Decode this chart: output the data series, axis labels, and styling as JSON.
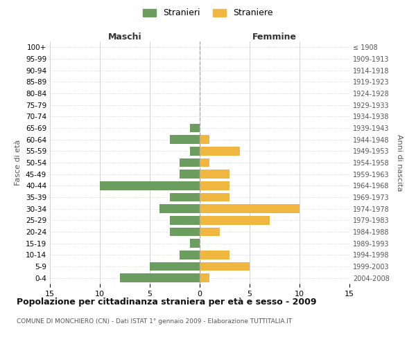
{
  "age_groups": [
    "100+",
    "95-99",
    "90-94",
    "85-89",
    "80-84",
    "75-79",
    "70-74",
    "65-69",
    "60-64",
    "55-59",
    "50-54",
    "45-49",
    "40-44",
    "35-39",
    "30-34",
    "25-29",
    "20-24",
    "15-19",
    "10-14",
    "5-9",
    "0-4"
  ],
  "birth_years": [
    "≤ 1908",
    "1909-1913",
    "1914-1918",
    "1919-1923",
    "1924-1928",
    "1929-1933",
    "1934-1938",
    "1939-1943",
    "1944-1948",
    "1949-1953",
    "1954-1958",
    "1959-1963",
    "1964-1968",
    "1969-1973",
    "1974-1978",
    "1979-1983",
    "1984-1988",
    "1989-1993",
    "1994-1998",
    "1999-2003",
    "2004-2008"
  ],
  "maschi": [
    0,
    0,
    0,
    0,
    0,
    0,
    0,
    1,
    3,
    1,
    2,
    2,
    10,
    3,
    4,
    3,
    3,
    1,
    2,
    5,
    8
  ],
  "femmine": [
    0,
    0,
    0,
    0,
    0,
    0,
    0,
    0,
    1,
    4,
    1,
    3,
    3,
    3,
    10,
    7,
    2,
    0,
    3,
    5,
    1
  ],
  "color_maschi": "#6b9e5e",
  "color_femmine": "#f0b740",
  "title": "Popolazione per cittadinanza straniera per età e sesso - 2009",
  "subtitle": "COMUNE DI MONCHIERO (CN) - Dati ISTAT 1° gennaio 2009 - Elaborazione TUTTITALIA.IT",
  "xlabel_left": "Maschi",
  "xlabel_right": "Femmine",
  "ylabel_left": "Fasce di età",
  "ylabel_right": "Anni di nascita",
  "legend_maschi": "Stranieri",
  "legend_femmine": "Straniere",
  "xlim": 15,
  "background_color": "#ffffff",
  "grid_color": "#cccccc"
}
